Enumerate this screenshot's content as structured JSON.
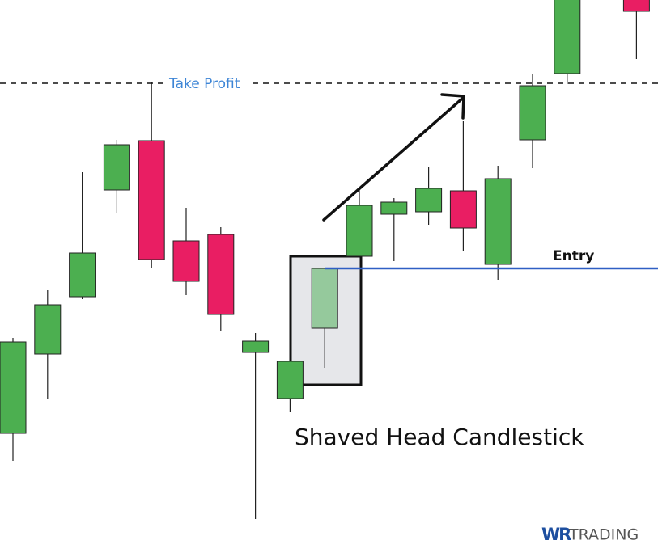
{
  "chart_data": {
    "type": "candlestick",
    "categories": [
      null,
      null,
      null,
      null,
      null,
      null,
      null,
      null,
      null,
      null,
      null,
      null,
      null,
      null,
      null,
      null,
      null,
      null,
      null
    ],
    "series": [
      {
        "open": [
          164,
          262,
          333,
          465,
          526,
          402,
          410,
          264,
          207,
          294,
          383,
          435,
          438,
          464,
          373,
          527,
          609,
          null,
          750
        ],
        "high": [
          282,
          341,
          487,
          527,
          598,
          443,
          419,
          288,
          253,
          368,
          466,
          455,
          493,
          550,
          495,
          609,
          745,
          null,
          760
        ],
        "low": [
          130,
          207,
          330,
          437,
          369,
          335,
          290,
          58,
          190,
          245,
          383,
          377,
          422,
          390,
          354,
          492,
          596,
          null,
          627
        ],
        "close": [
          277,
          323,
          387,
          521,
          379,
          352,
          311,
          278,
          253,
          368,
          446,
          450,
          467,
          418,
          479,
          594,
          730,
          null,
          686
        ]
      }
    ],
    "up_color": "#4caf50",
    "down_color": "#e91e63",
    "ylim": [
      16,
      700
    ],
    "take_profit": {
      "label": "Take Profit",
      "value": 597,
      "color": "#3d85d6"
    },
    "entry": {
      "label": "Entry",
      "value": 368,
      "color": "#2f5fc4"
    },
    "annotation": "Shaved Head Candlestick",
    "logo": [
      "WR",
      "TRADING"
    ]
  }
}
